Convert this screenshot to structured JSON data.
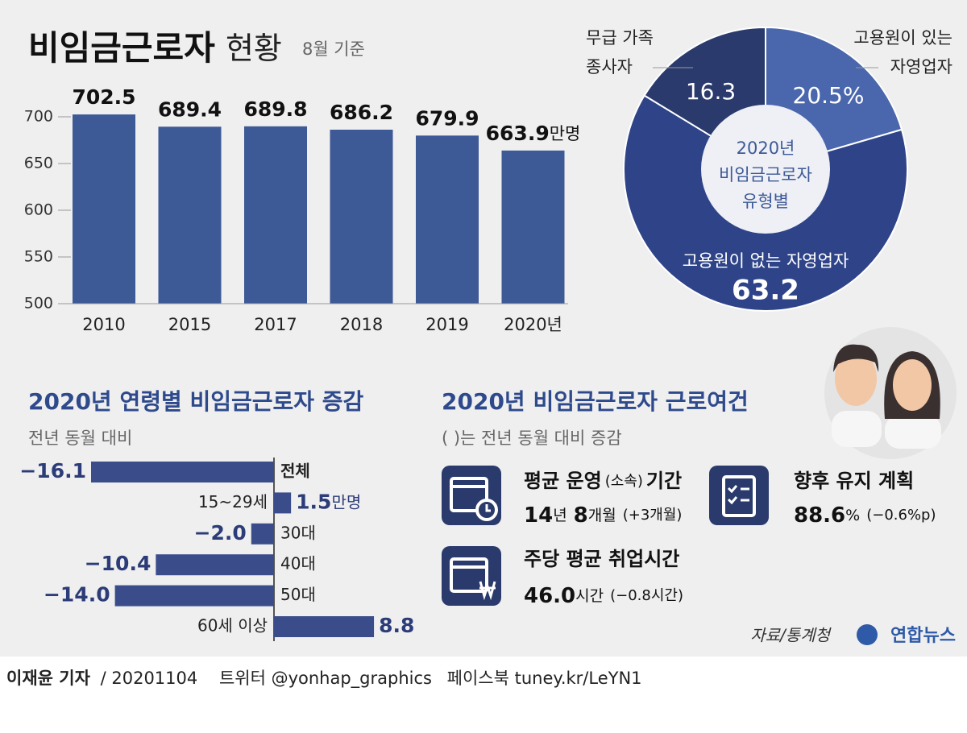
{
  "title": "비임금근로자",
  "title_suffix": "현황",
  "subtitle": "8월 기준",
  "chart_data": [
    {
      "type": "bar",
      "categories": [
        "2010",
        "2015",
        "2017",
        "2018",
        "2019",
        "2020년"
      ],
      "values": [
        702.5,
        689.4,
        689.8,
        686.2,
        679.9,
        663.9
      ],
      "unit": "만명",
      "color": "#3d5996",
      "ylim": [
        500,
        700
      ],
      "yticks": [
        500,
        550,
        600,
        650,
        700
      ]
    },
    {
      "type": "pie",
      "title": [
        "2020년",
        "비임금근로자",
        "유형별"
      ],
      "categories": [
        [
          "고용원이 있는",
          "자영업자"
        ],
        [
          "고용원이 없는 자영업자"
        ],
        [
          "무급 가족",
          "종사자"
        ]
      ],
      "values": [
        20.5,
        63.2,
        16.3
      ],
      "value_labels": [
        "20.5%",
        "63.2",
        "16.3"
      ],
      "colors": [
        "#4a67ad",
        "#2f4488",
        "#2a3a6c"
      ]
    },
    {
      "type": "hbar",
      "title": "2020년 연령별 비임금근로자 증감",
      "subtitle": "전년 동월 대비",
      "categories": [
        "전체",
        "15~29세",
        "30대",
        "40대",
        "50대",
        "60세 이상"
      ],
      "values": [
        -16.1,
        1.5,
        -2.0,
        -10.4,
        -14.0,
        8.8
      ],
      "value_labels": [
        "−16.1",
        "1.5",
        "−2.0",
        "−10.4",
        "−14.0",
        "8.8"
      ],
      "unit": "만명",
      "color": "#3b4c8a"
    }
  ],
  "conditions": {
    "title": "2020년 비임금근로자 근로여건",
    "note": "(   )는 전년 동월 대비 증감",
    "items": [
      {
        "label": [
          "평균 운영",
          "(소속)",
          "기간"
        ],
        "value": [
          "14",
          "년",
          "8",
          "개월",
          "(+3개월)"
        ]
      },
      {
        "label": [
          "향후 유지 계획"
        ],
        "value": [
          "88.6",
          "%",
          "(−0.6%p)"
        ]
      },
      {
        "label": [
          "주당 평균 취업시간"
        ],
        "value": [
          "46.0",
          "시간",
          "(−0.8시간)"
        ]
      }
    ]
  },
  "source": "자료/통계청",
  "logo": "연합뉴스",
  "credit": {
    "author": "이재윤 기자",
    "date": "/ 20201104",
    "twitter": "트위터 @yonhap_graphics",
    "facebook": "페이스북 tuney.kr/LeYN1"
  }
}
